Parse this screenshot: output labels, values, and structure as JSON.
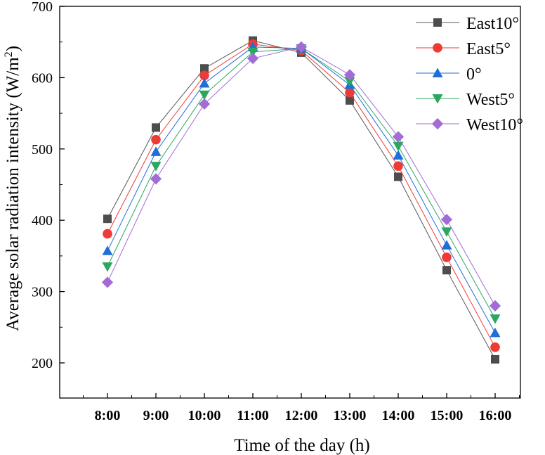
{
  "chart_data": {
    "type": "line",
    "title": "",
    "xlabel": "Time of the day (h)",
    "ylabel": "Average solar radiation intensity (W/m",
    "ylabel_sup": "2",
    "ylabel_close": ")",
    "categories": [
      "8:00",
      "9:00",
      "10:00",
      "11:00",
      "12:00",
      "13:00",
      "14:00",
      "15:00",
      "16:00"
    ],
    "ylim": [
      200,
      700
    ],
    "yticks": [
      200,
      300,
      400,
      500,
      600,
      700
    ],
    "grid": false,
    "legend_position": "top-right",
    "series": [
      {
        "name": "East10°",
        "marker": "square",
        "color": "#4d4d4d",
        "line_color": "#555555",
        "values": [
          402,
          530,
          613,
          652,
          635,
          568,
          461,
          330,
          205
        ]
      },
      {
        "name": "East5°",
        "marker": "circle",
        "color": "#ee3b35",
        "line_color": "#ee3b35",
        "values": [
          381,
          513,
          603,
          647,
          638,
          579,
          476,
          348,
          222
        ]
      },
      {
        "name": "0°",
        "marker": "triangle-up",
        "color": "#1f6fd9",
        "line_color": "#1f6fd9",
        "values": [
          357,
          496,
          592,
          643,
          641,
          590,
          491,
          365,
          242
        ]
      },
      {
        "name": "West5°",
        "marker": "triangle-down",
        "color": "#2ba85e",
        "line_color": "#2ba85e",
        "values": [
          335,
          476,
          576,
          636,
          641,
          595,
          504,
          384,
          262
        ]
      },
      {
        "name": "West10°",
        "marker": "diamond",
        "color": "#a36bd6",
        "line_color": "#a36bd6",
        "values": [
          313,
          458,
          563,
          627,
          643,
          604,
          517,
          401,
          280
        ]
      }
    ]
  }
}
